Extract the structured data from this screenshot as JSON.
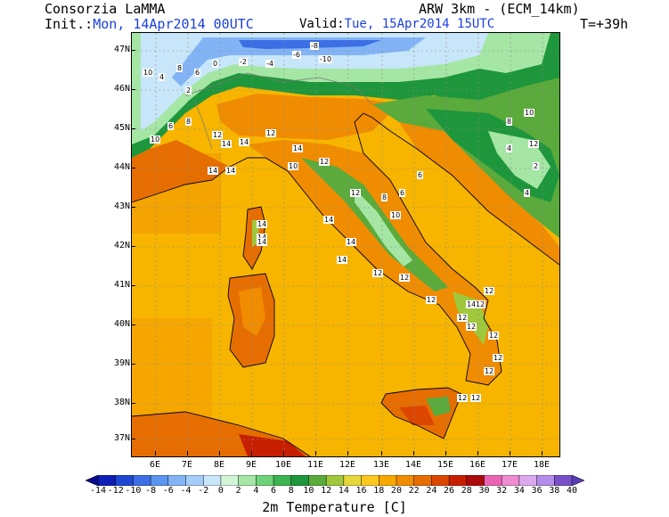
{
  "header": {
    "left_title": "Consorzia LaMMA",
    "init_label": "Init.:",
    "init_value": "Mon, 14Apr2014 00UTC",
    "model_title": "ARW 3km - (ECM_14km)",
    "valid_label": "Valid:",
    "valid_value": "Tue, 15Apr2014 15UTC",
    "lead_time": "T=+39h"
  },
  "axes": {
    "lat_labels": [
      "47N",
      "46N",
      "45N",
      "44N",
      "43N",
      "42N",
      "41N",
      "40N",
      "39N",
      "38N",
      "37N"
    ],
    "lon_labels": [
      "6E",
      "7E",
      "8E",
      "9E",
      "10E",
      "11E",
      "12E",
      "13E",
      "14E",
      "15E",
      "16E",
      "17E",
      "18E"
    ]
  },
  "colorbar": {
    "title": "2m Temperature [C]",
    "levels": [
      "-14",
      "-12",
      "-10",
      "-8",
      "-6",
      "-4",
      "-2",
      "0",
      "2",
      "4",
      "6",
      "8",
      "10",
      "12",
      "14",
      "16",
      "18",
      "20",
      "22",
      "24",
      "26",
      "28",
      "30",
      "32",
      "34",
      "36",
      "38",
      "40"
    ],
    "colors": [
      "#0a0a8c",
      "#0d1eb4",
      "#1e46d2",
      "#3c6ee6",
      "#5a96f0",
      "#82b4f5",
      "#a5cdfa",
      "#c8e6fa",
      "#d2f5d7",
      "#a5e6a5",
      "#6ed278",
      "#3cb450",
      "#1e963c",
      "#5aaa3c",
      "#a0c83c",
      "#e6d73c",
      "#fac81e",
      "#f7a800",
      "#f08c00",
      "#e66e00",
      "#dc4600",
      "#c81e00",
      "#aa0a0a",
      "#eb64b4",
      "#f08cd2",
      "#dcaaf0",
      "#b48ceb",
      "#7850c8",
      "#5a3cb4"
    ]
  },
  "contour_labels": [
    "10",
    "4",
    "8",
    "6",
    "2",
    "0",
    "-2",
    "-4",
    "-6",
    "-8",
    "-10",
    "12",
    "14",
    "8",
    "6",
    "10",
    "14",
    "12",
    "14",
    "12",
    "10",
    "14",
    "14",
    "14",
    "14",
    "14",
    "14",
    "12",
    "12",
    "12",
    "14",
    "12",
    "12",
    "12",
    "12",
    "12",
    "12",
    "12",
    "12",
    "12",
    "14",
    "14",
    "12",
    "10",
    "8",
    "6",
    "6",
    "4",
    "2",
    "4",
    "8",
    "10",
    "12"
  ]
}
